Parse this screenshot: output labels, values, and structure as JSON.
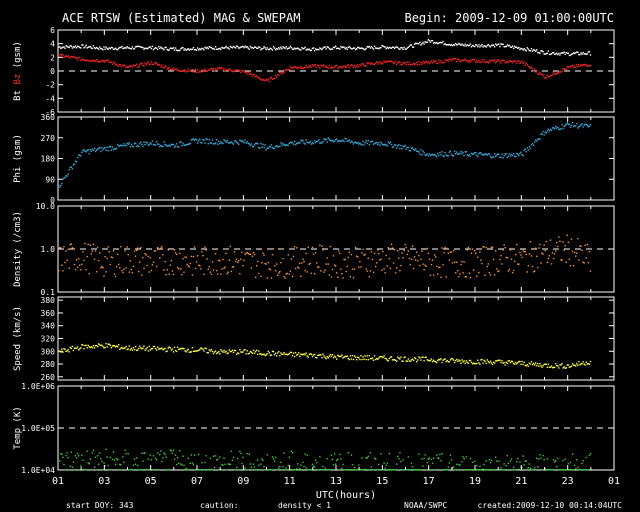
{
  "header": {
    "title": "ACE RTSW (Estimated) MAG & SWEPAM",
    "begin": "Begin: 2009-12-09 01:00:00UTC"
  },
  "footer": {
    "start_doy": "start DOY: 343",
    "caution_label": "caution:",
    "caution_text": "density < 1",
    "agency": "NOAA/SWPC",
    "created": "created:2009-12-10 00:14:04UTC"
  },
  "colors": {
    "background": "#000000",
    "frame": "#ffffff",
    "bt": "#ffffff",
    "bz": "#ff2020",
    "phi": "#30b0e0",
    "density": "#ff9020",
    "speed": "#ffff30",
    "temp": "#30d030",
    "caution": "#ff9020"
  },
  "chart_data": [
    {
      "type": "line",
      "ylabel_parts": [
        "Bt",
        "Bz",
        "(gsm)"
      ],
      "yticks": [
        "6",
        "4",
        "2",
        "0",
        "-2",
        "-4",
        "-6"
      ],
      "ylim": [
        -6,
        6
      ],
      "dashed_reference": [
        0
      ],
      "x_hours": [
        1,
        2,
        3,
        4,
        5,
        6,
        7,
        8,
        9,
        10,
        11,
        12,
        13,
        14,
        15,
        16,
        17,
        18,
        19,
        20,
        21,
        22,
        23,
        24
      ],
      "series": [
        {
          "name": "Bt",
          "color": "#ffffff",
          "values": [
            3.6,
            3.7,
            3.4,
            3.5,
            3.5,
            3.3,
            3.4,
            3.5,
            3.5,
            3.4,
            3.5,
            3.3,
            3.5,
            3.4,
            3.6,
            3.5,
            4.5,
            4.0,
            3.8,
            3.9,
            3.4,
            2.8,
            2.6,
            2.7
          ]
        },
        {
          "name": "Bz",
          "color": "#ff2020",
          "values": [
            2.4,
            1.8,
            1.6,
            0.6,
            1.3,
            0.3,
            0.1,
            0.4,
            0.0,
            -1.4,
            0.6,
            0.8,
            0.7,
            0.9,
            1.4,
            1.2,
            1.3,
            1.7,
            1.6,
            1.5,
            1.4,
            -0.8,
            0.6,
            1.1
          ]
        }
      ]
    },
    {
      "type": "scatter",
      "ylabel": "Phi (gsm)",
      "yticks": [
        "360",
        "270",
        "180",
        "90",
        "0"
      ],
      "ylim": [
        0,
        360
      ],
      "x_hours": [
        1,
        2,
        3,
        4,
        5,
        6,
        7,
        8,
        9,
        10,
        11,
        12,
        13,
        14,
        15,
        16,
        17,
        18,
        19,
        20,
        21,
        22,
        23,
        24
      ],
      "series": [
        {
          "name": "Phi",
          "color": "#30b0e0",
          "values": [
            60,
            210,
            225,
            240,
            250,
            240,
            260,
            255,
            255,
            230,
            250,
            255,
            265,
            250,
            250,
            230,
            200,
            205,
            200,
            195,
            200,
            300,
            330,
            320
          ]
        }
      ]
    },
    {
      "type": "scatter",
      "ylabel": "Density (/cm3)",
      "yticks": [
        "10.0",
        "1.0",
        "0.1"
      ],
      "yscale": "log",
      "ylim": [
        0.1,
        10
      ],
      "dashed_reference": [
        1.0
      ],
      "x_hours": [
        1,
        2,
        3,
        4,
        5,
        6,
        7,
        8,
        9,
        10,
        11,
        12,
        13,
        14,
        15,
        16,
        17,
        18,
        19,
        20,
        21,
        22,
        23,
        24
      ],
      "series": [
        {
          "name": "Density",
          "color": "#ff9020",
          "values": [
            0.6,
            0.7,
            0.5,
            0.6,
            0.5,
            0.6,
            0.5,
            0.6,
            0.5,
            0.5,
            0.5,
            0.6,
            0.5,
            0.5,
            0.6,
            0.6,
            0.5,
            0.5,
            0.5,
            0.6,
            0.6,
            0.8,
            1.0,
            0.5
          ]
        }
      ]
    },
    {
      "type": "scatter",
      "ylabel": "Speed (km/s)",
      "yticks": [
        "380",
        "360",
        "340",
        "320",
        "300",
        "280",
        "260"
      ],
      "ylim": [
        255,
        385
      ],
      "x_hours": [
        1,
        2,
        3,
        4,
        5,
        6,
        7,
        8,
        9,
        10,
        11,
        12,
        13,
        14,
        15,
        16,
        17,
        18,
        19,
        20,
        21,
        22,
        23,
        24
      ],
      "series": [
        {
          "name": "Speed",
          "color": "#ffff30",
          "values": [
            300,
            308,
            310,
            306,
            305,
            304,
            303,
            300,
            300,
            298,
            296,
            295,
            292,
            291,
            290,
            289,
            288,
            286,
            285,
            284,
            282,
            279,
            278,
            285
          ]
        }
      ]
    },
    {
      "type": "scatter",
      "ylabel": "Temp (K)",
      "yticks": [
        "1.0E+06",
        "1.0E+05",
        "1.0E+04"
      ],
      "yscale": "log",
      "ylim": [
        10000,
        1000000
      ],
      "dashed_reference": [
        100000
      ],
      "x_hours": [
        1,
        2,
        3,
        4,
        5,
        6,
        7,
        8,
        9,
        10,
        11,
        12,
        13,
        14,
        15,
        16,
        17,
        18,
        19,
        20,
        21,
        22,
        23,
        24
      ],
      "series": [
        {
          "name": "Temp",
          "color": "#30d030",
          "values": [
            14000,
            16000,
            15000,
            14000,
            13000,
            14000,
            13000,
            13500,
            13000,
            12500,
            13000,
            12500,
            12000,
            12000,
            12000,
            11500,
            11500,
            11000,
            11000,
            11000,
            11000,
            11000,
            11000,
            11500
          ]
        }
      ]
    }
  ],
  "x_axis": {
    "ticks": [
      "01",
      "03",
      "05",
      "07",
      "09",
      "11",
      "13",
      "15",
      "17",
      "19",
      "21",
      "23",
      "01"
    ],
    "label": "UTC(hours)"
  }
}
